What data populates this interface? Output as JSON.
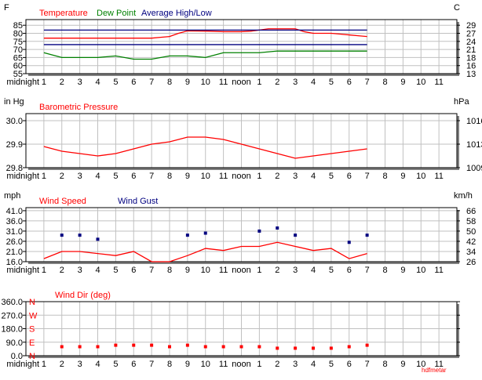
{
  "hour_labels": [
    "midnight",
    "1",
    "2",
    "3",
    "4",
    "5",
    "6",
    "7",
    "8",
    "9",
    "10",
    "11",
    "noon",
    "1",
    "2",
    "3",
    "4",
    "5",
    "6",
    "7",
    "8",
    "9",
    "10",
    "11"
  ],
  "footer": "hdfmetar",
  "colors": {
    "red": "#ff0000",
    "green": "#008000",
    "blue": "#000080",
    "grid": "#c0c0c0"
  },
  "chart_data": [
    {
      "type": "line",
      "left_unit": "F",
      "right_unit": "C",
      "ylim": [
        55,
        88.5
      ],
      "left_ticks": [
        {
          "v": 85,
          "t": "85"
        },
        {
          "v": 80,
          "t": "80"
        },
        {
          "v": 75,
          "t": "75"
        },
        {
          "v": 70,
          "t": "70"
        },
        {
          "v": 65,
          "t": "65"
        },
        {
          "v": 60,
          "t": "60"
        },
        {
          "v": 55,
          "t": "55"
        }
      ],
      "right_ticks": [
        {
          "v": 85,
          "t": "29"
        },
        {
          "v": 80,
          "t": "27"
        },
        {
          "v": 75,
          "t": "24"
        },
        {
          "v": 70,
          "t": "21"
        },
        {
          "v": 65,
          "t": "18"
        },
        {
          "v": 60,
          "t": "16"
        },
        {
          "v": 55,
          "t": "13"
        }
      ],
      "legend": [
        {
          "name": "Temperature",
          "color": "#ff0000"
        },
        {
          "name": "Dew Point",
          "color": "#008000"
        },
        {
          "name": "Average High/Low",
          "color": "#000080"
        }
      ],
      "series": [
        {
          "name": "Temperature",
          "color": "#ff0000",
          "x": [
            1,
            7,
            7.5,
            8,
            8.5,
            9,
            10.2,
            11,
            12,
            12.5,
            13,
            13.5,
            15,
            15.5,
            16,
            17,
            17.5,
            18,
            18.5,
            19
          ],
          "y": [
            77,
            77,
            77.5,
            78,
            80,
            81.5,
            81.3,
            81,
            81,
            81.3,
            82,
            82.8,
            82.8,
            81,
            80,
            80,
            79.5,
            79,
            78.5,
            78
          ]
        },
        {
          "name": "Dew Point",
          "color": "#008000",
          "x": [
            1,
            2,
            3,
            4,
            4.5,
            5,
            6,
            7,
            8,
            9,
            10,
            11,
            12,
            13,
            14,
            15,
            16,
            17,
            18,
            19
          ],
          "y": [
            68,
            65,
            65,
            65,
            65.5,
            66,
            64,
            64,
            66,
            66,
            65,
            68,
            68,
            68,
            69,
            69,
            69,
            69,
            69,
            69
          ]
        },
        {
          "name": "Average High",
          "color": "#000080",
          "x": [
            1,
            19
          ],
          "y": [
            82,
            82
          ]
        },
        {
          "name": "Average Low",
          "color": "#000080",
          "x": [
            1,
            19
          ],
          "y": [
            73,
            73
          ]
        }
      ]
    },
    {
      "type": "line",
      "left_unit": "in Hg",
      "right_unit": "hPa",
      "ylim": [
        29.8,
        30.03
      ],
      "left_ticks": [
        {
          "v": 30.0,
          "t": "30.0"
        },
        {
          "v": 29.9,
          "t": "29.9"
        },
        {
          "v": 29.8,
          "t": "29.8"
        }
      ],
      "right_ticks": [
        {
          "v": 30.0,
          "t": "1016"
        },
        {
          "v": 29.9,
          "t": "1013"
        },
        {
          "v": 29.8,
          "t": "1009"
        }
      ],
      "legend": [
        {
          "name": "Barometric Pressure",
          "color": "#ff0000"
        }
      ],
      "series": [
        {
          "name": "Barometric Pressure",
          "color": "#ff0000",
          "x": [
            1,
            2,
            3,
            4,
            5,
            6,
            7,
            8,
            9,
            10,
            11,
            12,
            13,
            14,
            15,
            16,
            17,
            18,
            19
          ],
          "y": [
            29.89,
            29.87,
            29.86,
            29.85,
            29.86,
            29.88,
            29.9,
            29.91,
            29.93,
            29.93,
            29.92,
            29.9,
            29.88,
            29.86,
            29.84,
            29.85,
            29.86,
            29.87,
            29.88
          ]
        }
      ]
    },
    {
      "type": "line",
      "left_unit": "mph",
      "right_unit": "km/h",
      "ylim": [
        16,
        42.5
      ],
      "left_ticks": [
        {
          "v": 41,
          "t": "41.0"
        },
        {
          "v": 36,
          "t": "36.0"
        },
        {
          "v": 31,
          "t": "31.0"
        },
        {
          "v": 26,
          "t": "26.0"
        },
        {
          "v": 21,
          "t": "21.0"
        },
        {
          "v": 16,
          "t": "16.0"
        }
      ],
      "right_ticks": [
        {
          "v": 41,
          "t": "66"
        },
        {
          "v": 36,
          "t": "58"
        },
        {
          "v": 31,
          "t": "50"
        },
        {
          "v": 26,
          "t": "42"
        },
        {
          "v": 21,
          "t": "34"
        },
        {
          "v": 16,
          "t": "26"
        }
      ],
      "legend": [
        {
          "name": "Wind Speed",
          "color": "#ff0000"
        },
        {
          "name": "Wind Gust",
          "color": "#000080"
        }
      ],
      "series": [
        {
          "name": "Wind Speed",
          "color": "#ff0000",
          "x": [
            1,
            2,
            3,
            4,
            5,
            6,
            7,
            8,
            9,
            10,
            11,
            12,
            13,
            14,
            15,
            16,
            17,
            18,
            19
          ],
          "y": [
            17.5,
            21,
            21,
            20,
            19,
            21,
            16,
            16,
            19,
            22.5,
            21.5,
            23.5,
            23.5,
            25.5,
            23.5,
            21.5,
            22.5,
            17.5,
            20
          ]
        },
        {
          "name": "Wind Gust",
          "color": "#000080",
          "points": true,
          "x": [
            2,
            3,
            4,
            9,
            10,
            13,
            14,
            15,
            18,
            19
          ],
          "y": [
            29,
            29,
            27,
            29,
            30,
            31,
            32.5,
            29,
            25.5,
            29
          ]
        }
      ]
    },
    {
      "type": "scatter",
      "left_unit": "",
      "right_unit": "",
      "ylim": [
        0,
        360
      ],
      "left_ticks": [
        {
          "v": 360,
          "t": "360.0"
        },
        {
          "v": 270,
          "t": "270.0"
        },
        {
          "v": 180,
          "t": "180.0"
        },
        {
          "v": 90,
          "t": "90.0"
        },
        {
          "v": 0,
          "t": "0.0"
        }
      ],
      "compass_ticks": [
        {
          "v": 360,
          "t": "N"
        },
        {
          "v": 270,
          "t": "W"
        },
        {
          "v": 180,
          "t": "S"
        },
        {
          "v": 90,
          "t": "E"
        },
        {
          "v": 0,
          "t": "N"
        }
      ],
      "right_ticks": [],
      "legend": [
        {
          "name": "Wind Dir (deg)",
          "color": "#ff0000"
        }
      ],
      "series": [
        {
          "name": "Wind Dir",
          "color": "#ff0000",
          "points": true,
          "x": [
            2,
            3,
            4,
            5,
            6,
            7,
            8,
            9,
            10,
            11,
            12,
            13,
            14,
            15,
            16,
            17,
            18,
            19
          ],
          "y": [
            60,
            60,
            60,
            70,
            70,
            70,
            60,
            70,
            60,
            60,
            60,
            60,
            50,
            50,
            50,
            50,
            60,
            70
          ]
        }
      ]
    }
  ]
}
